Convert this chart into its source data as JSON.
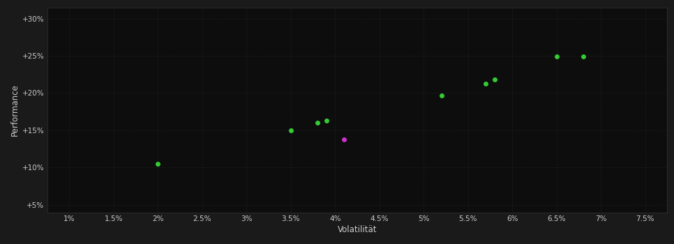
{
  "background_color": "#1a1a1a",
  "plot_bg_color": "#0d0d0d",
  "grid_color": "#2a2a2a",
  "text_color": "#cccccc",
  "xlabel": "Volatilität",
  "ylabel": "Performance",
  "x_ticks": [
    0.01,
    0.015,
    0.02,
    0.025,
    0.03,
    0.035,
    0.04,
    0.045,
    0.05,
    0.055,
    0.06,
    0.065,
    0.07,
    0.075
  ],
  "y_ticks": [
    0.05,
    0.1,
    0.15,
    0.2,
    0.25,
    0.3
  ],
  "xlim": [
    0.0075,
    0.0775
  ],
  "ylim": [
    0.04,
    0.315
  ],
  "green_points": [
    [
      0.02,
      0.105
    ],
    [
      0.035,
      0.15
    ],
    [
      0.038,
      0.16
    ],
    [
      0.039,
      0.163
    ],
    [
      0.052,
      0.197
    ],
    [
      0.057,
      0.213
    ],
    [
      0.058,
      0.218
    ],
    [
      0.065,
      0.249
    ],
    [
      0.068,
      0.249
    ]
  ],
  "magenta_points": [
    [
      0.041,
      0.138
    ]
  ],
  "green_color": "#33cc33",
  "magenta_color": "#cc33cc",
  "marker_size": 5,
  "font_size_ticks": 7.5,
  "font_size_labels": 8.5
}
